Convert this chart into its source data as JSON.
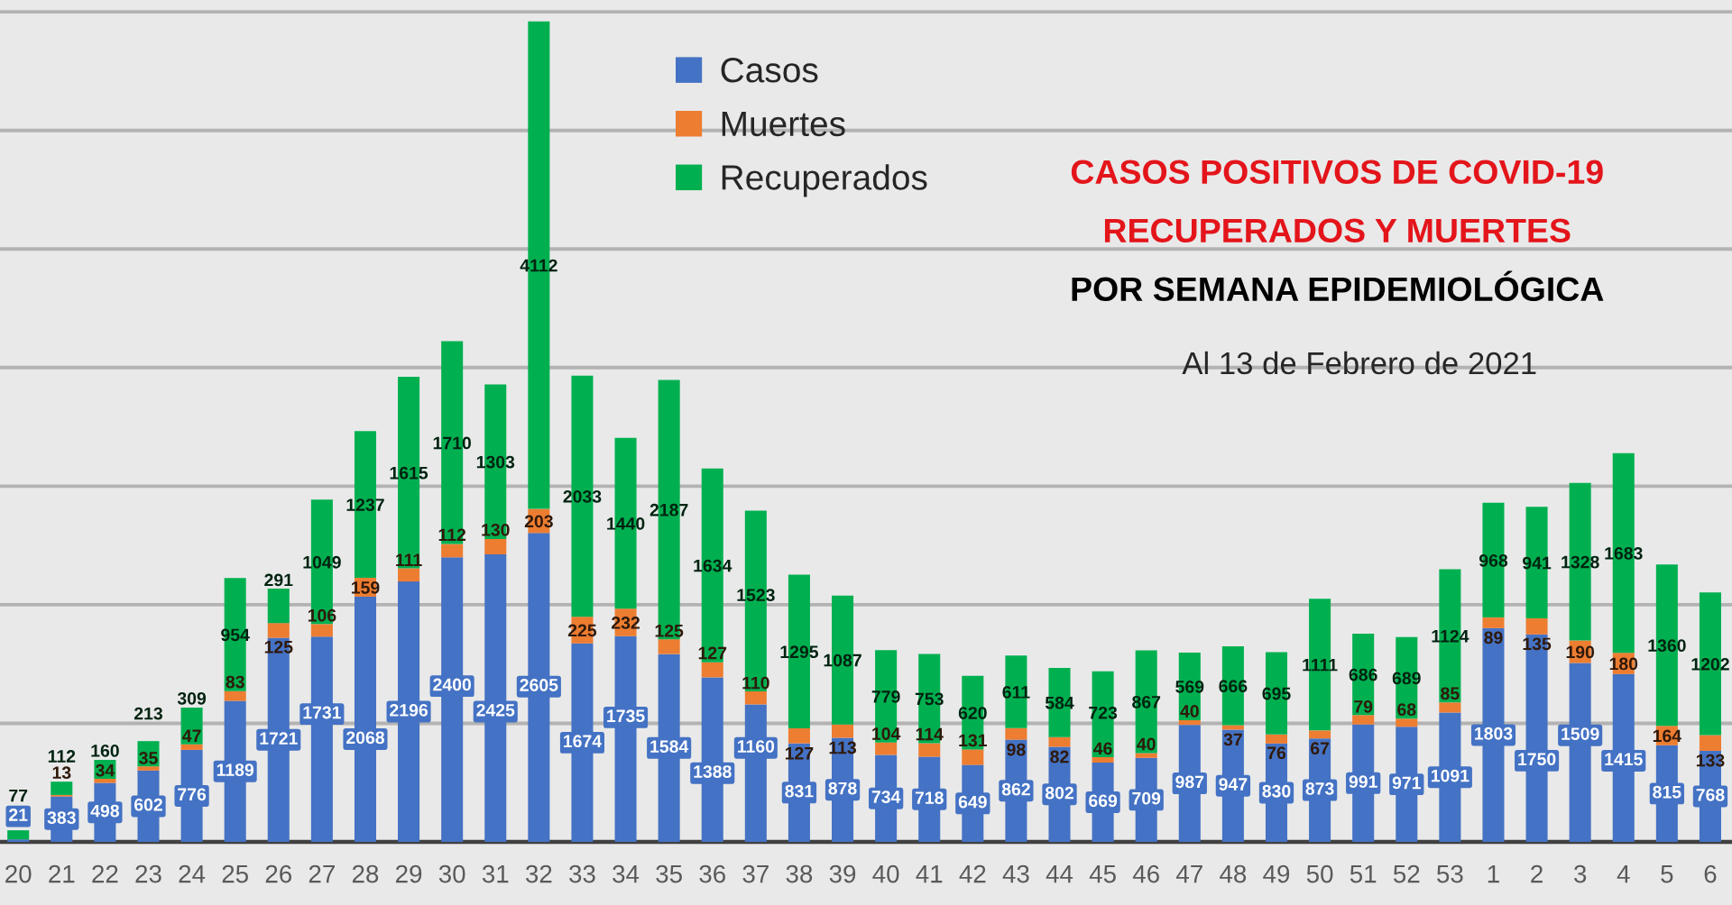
{
  "chart_data": {
    "type": "bar",
    "stacked": true,
    "title": "CASOS POSITIVOS DE COVID-19\nRECUPERADOS Y MUERTES\nPOR SEMANA EPIDEMIOLÓGICA",
    "subtitle": "Al 13 de Febrero de 2021",
    "categories": [
      "20",
      "21",
      "22",
      "23",
      "24",
      "25",
      "26",
      "27",
      "28",
      "29",
      "30",
      "31",
      "32",
      "33",
      "34",
      "35",
      "36",
      "37",
      "38",
      "39",
      "40",
      "41",
      "42",
      "43",
      "44",
      "45",
      "46",
      "47",
      "48",
      "49",
      "50",
      "51",
      "52",
      "53",
      "1",
      "2",
      "3",
      "4",
      "5",
      "6"
    ],
    "series": [
      {
        "name": "Casos",
        "color": "#4472c4",
        "values": [
          21,
          383,
          498,
          602,
          776,
          1189,
          1721,
          1731,
          2068,
          2196,
          2400,
          2425,
          2605,
          1674,
          1735,
          1584,
          1388,
          1160,
          831,
          878,
          734,
          718,
          649,
          862,
          802,
          669,
          709,
          987,
          947,
          830,
          873,
          991,
          971,
          1091,
          1803,
          1750,
          1509,
          1415,
          815,
          768
        ]
      },
      {
        "name": "Muertes",
        "color": "#ed7d31",
        "values": [
          null,
          13,
          34,
          35,
          47,
          83,
          125,
          106,
          159,
          111,
          112,
          130,
          203,
          225,
          232,
          125,
          127,
          110,
          127,
          113,
          104,
          114,
          131,
          98,
          82,
          46,
          40,
          40,
          37,
          76,
          67,
          79,
          68,
          85,
          89,
          135,
          190,
          180,
          164,
          133
        ]
      },
      {
        "name": "Recuperados",
        "color": "#00b050",
        "values": [
          77,
          112,
          160,
          213,
          309,
          954,
          291,
          1049,
          1237,
          1615,
          1710,
          1303,
          4112,
          2033,
          1440,
          2187,
          1634,
          1523,
          1295,
          1087,
          779,
          753,
          620,
          611,
          584,
          723,
          867,
          569,
          666,
          695,
          1111,
          686,
          689,
          1124,
          968,
          941,
          1328,
          1683,
          1360,
          1202
        ]
      }
    ],
    "ylim": [
      0,
      7100
    ],
    "yticks": [
      {
        "value": 1000,
        "label": null
      },
      {
        "value": 2000,
        "label": null
      },
      {
        "value": 3000,
        "label": null
      },
      {
        "value": 4000,
        "label": null
      },
      {
        "value": 5000,
        "label": null
      },
      {
        "value": 6000,
        "label": null
      },
      {
        "value": 7000,
        "label": null
      }
    ],
    "grid": "y",
    "legend": "top",
    "data_labels": true,
    "tick_labels": "x"
  }
}
